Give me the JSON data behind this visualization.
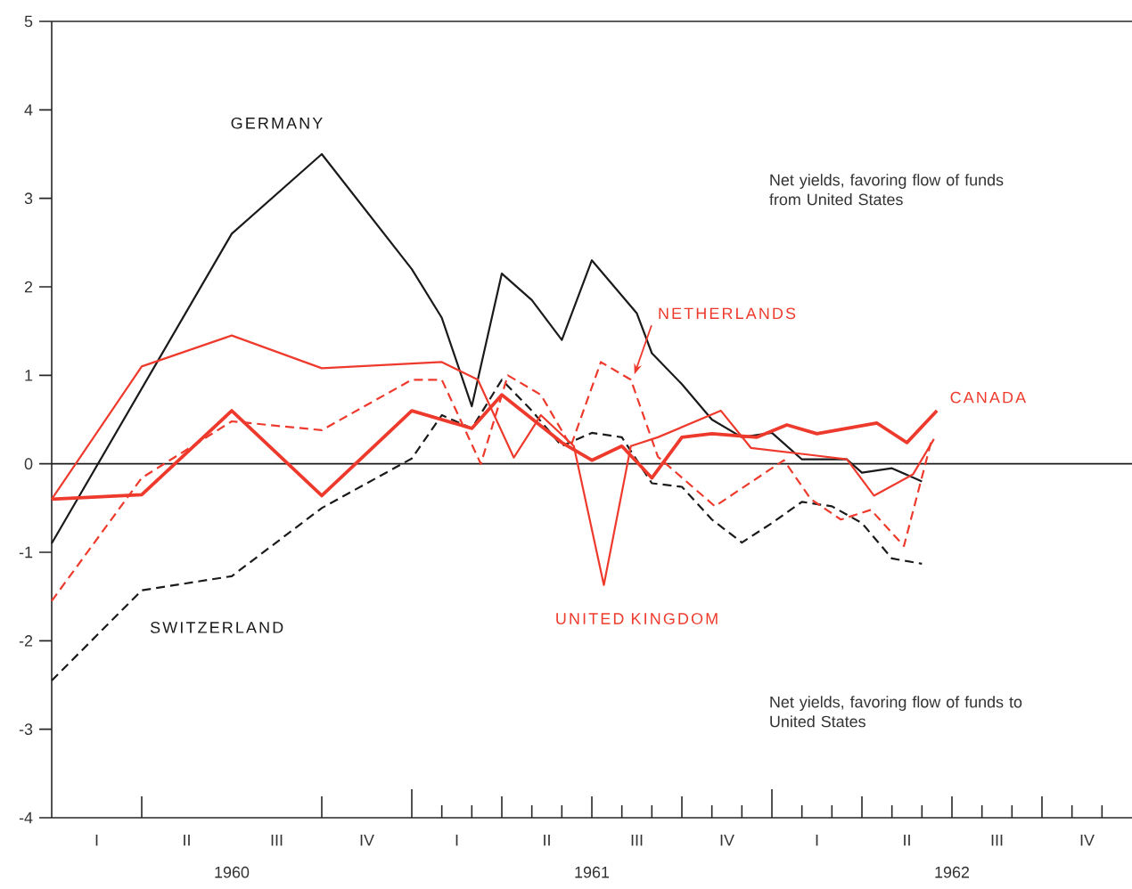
{
  "chart_data": {
    "type": "line",
    "annotations": [
      "Net yields, favoring flow of funds from United States",
      "Net yields, favoring flow of funds to United States",
      "I",
      "II",
      "III",
      "IV",
      "I",
      "II",
      "III",
      "IV",
      "I",
      "II",
      "III",
      "IV"
    ],
    "xlim": [
      "1960-01-01",
      "1963-01-01"
    ],
    "ylim": [
      -4,
      5
    ],
    "yticks": [
      -4,
      -3,
      -2,
      -1,
      0,
      1,
      2,
      3,
      4,
      5
    ],
    "xticks": [
      {
        "value": "1960-07-01",
        "label": "1960"
      },
      {
        "value": "1961-07-01",
        "label": "1961"
      },
      {
        "value": "1962-07-01",
        "label": "1962"
      },
      {
        "value": "1960-04-01",
        "label": null
      },
      {
        "value": "1960-10-01",
        "label": null
      },
      {
        "value": "1961-01-01",
        "label": null
      },
      {
        "value": "1961-02-01",
        "label": null
      },
      {
        "value": "1961-03-01",
        "label": null
      },
      {
        "value": "1961-04-01",
        "label": null
      },
      {
        "value": "1961-05-01",
        "label": null
      },
      {
        "value": "1961-06-01",
        "label": null
      },
      {
        "value": "1961-07-01",
        "label": null
      },
      {
        "value": "1961-08-01",
        "label": null
      },
      {
        "value": "1961-09-01",
        "label": null
      },
      {
        "value": "1961-10-01",
        "label": null
      },
      {
        "value": "1961-11-01",
        "label": null
      },
      {
        "value": "1961-12-01",
        "label": null
      },
      {
        "value": "1962-01-01",
        "label": null
      },
      {
        "value": "1962-02-01",
        "label": null
      },
      {
        "value": "1962-03-01",
        "label": null
      },
      {
        "value": "1962-04-01",
        "label": null
      },
      {
        "value": "1962-05-01",
        "label": null
      },
      {
        "value": "1962-06-01",
        "label": null
      },
      {
        "value": "1962-07-01",
        "label": null
      },
      {
        "value": "1962-08-01",
        "label": null
      },
      {
        "value": "1962-09-01",
        "label": null
      },
      {
        "value": "1962-10-01",
        "label": null
      },
      {
        "value": "1962-11-01",
        "label": null
      },
      {
        "value": "1962-12-01",
        "label": null
      }
    ],
    "ref_lines": [
      {
        "axis": "y",
        "value": 0,
        "color": "#1a1a1a"
      }
    ],
    "grid": false,
    "marker": "none",
    "series": [
      {
        "name": "GERMANY",
        "color": "#1a1a1a",
        "line_style": "solid",
        "x": [
          "1960-01-01",
          "1960-07-01",
          "1960-10-01",
          "1961-01-01",
          "1961-02-01",
          "1961-03-01",
          "1961-04-01",
          "1961-05-01",
          "1961-06-01",
          "1961-07-01",
          "1961-08-16",
          "1961-09-01",
          "1961-10-01",
          "1961-11-01",
          "1961-12-01",
          "1962-01-01",
          "1962-02-01",
          "1962-03-16",
          "1962-04-01",
          "1962-05-01",
          "1962-06-01"
        ],
        "values": [
          -0.9,
          2.6,
          3.5,
          2.2,
          1.65,
          0.65,
          2.15,
          1.85,
          1.4,
          2.3,
          1.7,
          1.25,
          0.9,
          0.5,
          0.3,
          0.35,
          0.05,
          0.05,
          -0.1,
          -0.05,
          -0.2
        ]
      },
      {
        "name": "SWITZERLAND",
        "color": "#1a1a1a",
        "line_style": "dashed",
        "x": [
          "1960-01-01",
          "1960-04-01",
          "1960-07-01",
          "1960-10-01",
          "1961-01-01",
          "1961-02-01",
          "1961-03-01",
          "1961-04-01",
          "1961-05-01",
          "1961-06-01",
          "1961-07-01",
          "1961-08-01",
          "1961-09-01",
          "1961-10-01",
          "1961-11-01",
          "1961-12-01",
          "1962-01-01",
          "1962-02-01",
          "1962-03-01",
          "1962-04-01",
          "1962-05-01",
          "1962-06-01"
        ],
        "values": [
          -2.45,
          -1.43,
          -1.27,
          -0.5,
          0.06,
          0.55,
          0.4,
          0.95,
          0.6,
          0.2,
          0.35,
          0.3,
          -0.22,
          -0.26,
          -0.63,
          -0.89,
          -0.67,
          -0.43,
          -0.48,
          -0.67,
          -1.07,
          -1.13
        ]
      },
      {
        "name": "NETHERLANDS",
        "color": "#ee3a2c",
        "line_style": "dashed",
        "x": [
          "1960-01-01",
          "1960-04-01",
          "1960-07-01",
          "1960-10-01",
          "1961-01-01",
          "1961-02-01",
          "1961-03-10",
          "1961-04-07",
          "1961-05-10",
          "1961-06-10",
          "1961-07-10",
          "1961-08-10",
          "1961-09-07",
          "1961-11-04",
          "1962-01-13",
          "1962-02-10",
          "1962-03-10",
          "1962-04-10",
          "1962-05-13",
          "1962-06-10"
        ],
        "values": [
          -1.55,
          -0.16,
          0.48,
          0.38,
          0.95,
          0.95,
          0.0,
          1.0,
          0.78,
          0.2,
          1.15,
          0.95,
          0.08,
          -0.48,
          0.04,
          -0.4,
          -0.63,
          -0.52,
          -0.93,
          0.24
        ]
      },
      {
        "name": "CANADA",
        "color": "#ee3a2c",
        "line_style": "solid",
        "x": [
          "1960-01-01",
          "1960-04-01",
          "1960-07-01",
          "1960-10-01",
          "1961-01-01",
          "1961-03-01",
          "1961-04-01",
          "1961-06-01",
          "1961-07-01",
          "1961-08-01",
          "1961-09-01",
          "1961-10-01",
          "1961-11-01",
          "1961-12-16",
          "1962-01-16",
          "1962-02-16",
          "1962-04-16",
          "1962-05-16",
          "1962-06-16"
        ],
        "values": [
          -0.4,
          -0.35,
          0.6,
          -0.36,
          0.6,
          0.4,
          0.78,
          0.24,
          0.04,
          0.2,
          -0.16,
          0.3,
          0.34,
          0.3,
          0.44,
          0.34,
          0.46,
          0.24,
          0.6
        ]
      },
      {
        "name": "UNITED KINGDOM",
        "color": "#ee3a2c",
        "line_style": "solid",
        "x": [
          "1960-01-01",
          "1960-04-01",
          "1960-07-01",
          "1960-10-01",
          "1961-02-01",
          "1961-03-07",
          "1961-04-13",
          "1961-05-10",
          "1961-06-13",
          "1961-07-13",
          "1961-08-10",
          "1961-09-07",
          "1961-11-10",
          "1961-12-10",
          "1962-02-10",
          "1962-03-16",
          "1962-04-13",
          "1962-05-22",
          "1962-06-13"
        ],
        "values": [
          -0.4,
          1.1,
          1.45,
          1.08,
          1.15,
          0.95,
          0.07,
          0.55,
          0.2,
          -1.37,
          0.2,
          0.3,
          0.6,
          0.18,
          0.1,
          0.05,
          -0.36,
          -0.12,
          0.28
        ]
      }
    ]
  }
}
